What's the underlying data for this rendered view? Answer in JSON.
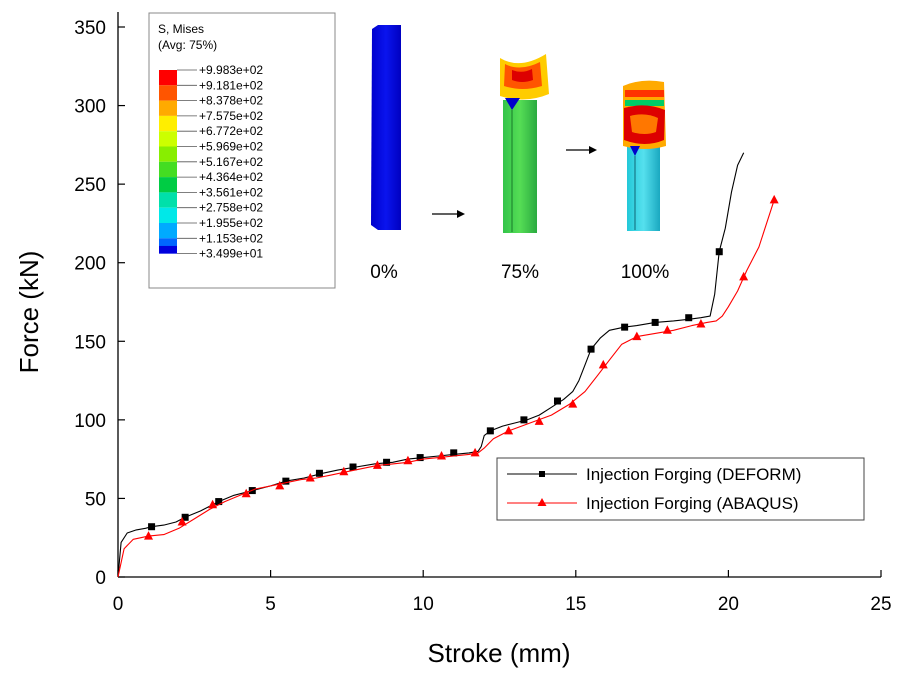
{
  "chart_data": {
    "type": "line",
    "title": "",
    "xlabel": "Stroke (mm)",
    "ylabel": "Force (kN)",
    "xlim": [
      0,
      25
    ],
    "ylim": [
      0,
      350
    ],
    "xticks": [
      0,
      5,
      10,
      15,
      20,
      25
    ],
    "yticks": [
      0,
      50,
      100,
      150,
      200,
      250,
      300,
      350
    ],
    "grid": false,
    "legend_position": "bottom-right",
    "series": [
      {
        "name": "Injection Forging (DEFORM)",
        "color": "#000000",
        "marker": "square",
        "x": [
          0,
          0.1,
          0.3,
          0.6,
          0.9,
          1.1,
          1.5,
          1.9,
          2.2,
          2.7,
          3.3,
          3.8,
          4.4,
          5.0,
          5.5,
          6.1,
          6.7,
          7.2,
          7.8,
          8.4,
          9.0,
          9.5,
          10.0,
          10.5,
          11.0,
          11.5,
          11.8,
          11.9,
          12.0,
          12.2,
          12.6,
          13.0,
          13.4,
          13.8,
          14.2,
          14.6,
          14.9,
          15.1,
          15.3,
          15.5,
          15.8,
          16.1,
          16.6,
          17.0,
          17.6,
          18.2,
          18.7,
          19.1,
          19.4,
          19.55,
          19.7,
          19.9,
          20.1,
          20.3,
          20.5
        ],
        "y": [
          0,
          22,
          28,
          30,
          31,
          32,
          33,
          35,
          38,
          42,
          48,
          52,
          55,
          58,
          61,
          63,
          66,
          68,
          70,
          72,
          73,
          75,
          76,
          77,
          78,
          79,
          80,
          83,
          90,
          93,
          96,
          98,
          100,
          103,
          108,
          113,
          118,
          125,
          135,
          145,
          152,
          157,
          159,
          160,
          162,
          163,
          164,
          165,
          166,
          180,
          207,
          222,
          245,
          262,
          270
        ],
        "marker_x": [
          1.1,
          2.2,
          3.3,
          4.4,
          5.5,
          6.6,
          7.7,
          8.8,
          9.9,
          11.0,
          12.2,
          13.3,
          14.4,
          15.5,
          16.6,
          17.6,
          18.7,
          19.7
        ],
        "marker_y": [
          32,
          38,
          48,
          55,
          61,
          66,
          70,
          73,
          76,
          79,
          93,
          100,
          112,
          145,
          159,
          162,
          165,
          207
        ]
      },
      {
        "name": "Injection Forging (ABAQUS)",
        "color": "#ff0000",
        "marker": "triangle",
        "x": [
          0,
          0.2,
          0.5,
          1.0,
          1.5,
          2.0,
          2.5,
          3.0,
          3.5,
          4.0,
          4.5,
          5.0,
          5.5,
          6.0,
          6.5,
          7.0,
          7.5,
          8.0,
          8.5,
          9.0,
          9.5,
          10.0,
          10.5,
          11.0,
          11.5,
          11.8,
          12.0,
          12.3,
          12.8,
          13.5,
          14.2,
          14.8,
          15.3,
          15.7,
          16.1,
          16.5,
          17.0,
          17.6,
          18.2,
          18.8,
          19.3,
          19.6,
          19.8,
          20.0,
          20.3,
          20.6,
          21.0,
          21.3,
          21.5
        ],
        "y": [
          0,
          18,
          24,
          26,
          27,
          31,
          37,
          43,
          48,
          52,
          56,
          58,
          60,
          62,
          63,
          65,
          67,
          69,
          71,
          72,
          73,
          75,
          76,
          77,
          78,
          79,
          82,
          88,
          93,
          98,
          103,
          110,
          118,
          128,
          138,
          148,
          153,
          155,
          157,
          160,
          162,
          163,
          166,
          172,
          182,
          195,
          210,
          228,
          240
        ],
        "marker_x": [
          1.0,
          2.1,
          3.1,
          4.2,
          5.3,
          6.3,
          7.4,
          8.5,
          9.5,
          10.6,
          11.7,
          12.8,
          13.8,
          14.9,
          15.9,
          17.0,
          18.0,
          19.1,
          20.5,
          21.5
        ],
        "marker_y": [
          26,
          35,
          46,
          53,
          58,
          63,
          67,
          71,
          74,
          77,
          79,
          93,
          99,
          110,
          135,
          153,
          157,
          161,
          191,
          240
        ]
      }
    ],
    "inset": {
      "legend_title_1": "S, Mises",
      "legend_title_2": "(Avg: 75%)",
      "legend_labels": [
        "+9.983e+02",
        "+9.181e+02",
        "+8.378e+02",
        "+7.575e+02",
        "+6.772e+02",
        "+5.969e+02",
        "+5.167e+02",
        "+4.364e+02",
        "+3.561e+02",
        "+2.758e+02",
        "+1.955e+02",
        "+1.153e+02",
        "+3.499e+01"
      ],
      "legend_colors": [
        "#ff0000",
        "#ff5500",
        "#ffaa00",
        "#ffee00",
        "#ccff00",
        "#88ee00",
        "#44dd22",
        "#00cc44",
        "#00e0aa",
        "#00e8e8",
        "#00aaff",
        "#0066ff",
        "#0000dd"
      ],
      "stage_labels": [
        "0%",
        "75%",
        "100%"
      ]
    }
  }
}
